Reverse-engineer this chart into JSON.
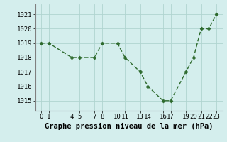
{
  "x": [
    0,
    1,
    4,
    5,
    7,
    8,
    10,
    11,
    13,
    14,
    16,
    17,
    19,
    20,
    21,
    22,
    23
  ],
  "y": [
    1019,
    1019,
    1018,
    1018,
    1018,
    1019,
    1019,
    1018,
    1017,
    1016,
    1015,
    1015,
    1017,
    1018,
    1020,
    1020,
    1021
  ],
  "line_color": "#2d6a2d",
  "marker_color": "#2d6a2d",
  "bg_color": "#d4eeed",
  "grid_color": "#b0d4d0",
  "xlabel": "Graphe pression niveau de la mer (hPa)",
  "xticks": [
    0,
    1,
    4,
    5,
    7,
    8,
    10,
    11,
    13,
    14,
    16,
    17,
    19,
    20,
    21,
    22,
    23
  ],
  "xtick_labels": [
    "0",
    "1",
    "4",
    "5",
    "7",
    "8",
    "10",
    "11",
    "13",
    "14",
    "16",
    "17",
    "19",
    "20",
    "21",
    "22",
    "23"
  ],
  "ylim": [
    1014.3,
    1021.7
  ],
  "yticks": [
    1015,
    1016,
    1017,
    1018,
    1019,
    1020,
    1021
  ],
  "xlim": [
    -0.8,
    23.8
  ],
  "xlabel_fontsize": 7.5,
  "tick_fontsize": 6.5,
  "marker_size": 2.5,
  "line_width": 1.0
}
